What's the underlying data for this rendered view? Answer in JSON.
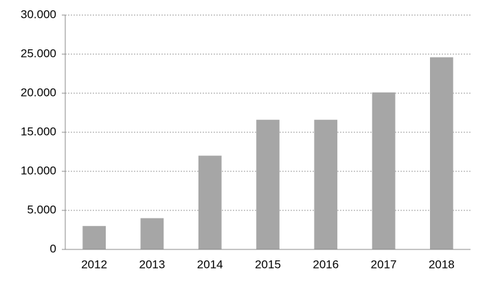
{
  "chart_data": {
    "type": "bar",
    "categories": [
      "2012",
      "2013",
      "2014",
      "2015",
      "2016",
      "2017",
      "2018"
    ],
    "values": [
      3000,
      4000,
      12000,
      16600,
      16600,
      20100,
      24600
    ],
    "color": "#a6a6a6",
    "ylim": [
      0,
      30000
    ],
    "yticks": [
      0,
      {
        "value": 5000,
        "label": "5.000"
      },
      {
        "value": 10000,
        "label": "10.000"
      },
      {
        "value": 15000,
        "label": "15.000"
      },
      {
        "value": 20000,
        "label": "20.000"
      },
      {
        "value": 25000,
        "label": "25.000"
      },
      {
        "value": 30000,
        "label": "30.000"
      }
    ],
    "grid": true
  }
}
